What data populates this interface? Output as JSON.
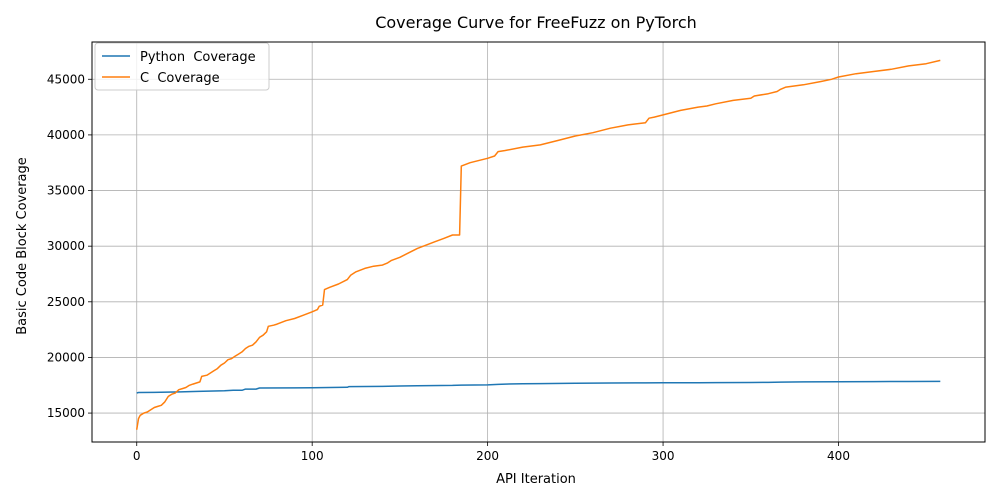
{
  "chart_data": {
    "type": "line",
    "title": "Coverage Curve for FreeFuzz on PyTorch",
    "xlabel": "API Iteration",
    "ylabel": "Basic Code Block Coverage",
    "xlim": [
      -25.5,
      483.5
    ],
    "ylim": [
      12400,
      48350
    ],
    "xticks": [
      0,
      100,
      200,
      300,
      400
    ],
    "yticks": [
      15000,
      20000,
      25000,
      30000,
      35000,
      40000,
      45000
    ],
    "grid": true,
    "legend_position": "top-left",
    "series": [
      {
        "name": "Python  Coverage",
        "color": "#1f77b4",
        "x": [
          0,
          1,
          10,
          25,
          35,
          50,
          55,
          60,
          62,
          68,
          70,
          90,
          100,
          110,
          120,
          121,
          140,
          150,
          160,
          180,
          185,
          200,
          206,
          210,
          220,
          230,
          250,
          270,
          290,
          300,
          320,
          330,
          350,
          360,
          367,
          380,
          400,
          420,
          440,
          458
        ],
        "y": [
          16800,
          16850,
          16860,
          16900,
          16950,
          17000,
          17050,
          17050,
          17150,
          17150,
          17250,
          17260,
          17280,
          17300,
          17320,
          17380,
          17400,
          17430,
          17460,
          17490,
          17510,
          17530,
          17580,
          17600,
          17630,
          17650,
          17680,
          17700,
          17710,
          17720,
          17730,
          17740,
          17750,
          17760,
          17780,
          17800,
          17810,
          17830,
          17840,
          17850
        ]
      },
      {
        "name": "C  Coverage",
        "color": "#ff7f0e",
        "x": [
          0,
          1,
          2,
          4,
          6,
          8,
          10,
          12,
          14,
          16,
          18,
          20,
          22,
          24,
          26,
          28,
          30,
          32,
          34,
          36,
          37,
          40,
          42,
          44,
          46,
          48,
          50,
          52,
          54,
          56,
          58,
          60,
          62,
          64,
          66,
          68,
          70,
          72,
          74,
          75,
          78,
          80,
          85,
          90,
          95,
          100,
          103,
          104,
          106,
          107,
          110,
          115,
          120,
          122,
          125,
          130,
          135,
          140,
          143,
          145,
          150,
          155,
          160,
          165,
          170,
          175,
          180,
          182,
          184,
          185,
          190,
          200,
          204,
          206,
          210,
          220,
          230,
          240,
          250,
          260,
          270,
          280,
          290,
          292,
          295,
          300,
          310,
          320,
          325,
          330,
          340,
          350,
          352,
          360,
          365,
          367,
          370,
          380,
          390,
          396,
          400,
          410,
          420,
          430,
          440,
          450,
          458
        ],
        "y": [
          13500,
          14500,
          14800,
          15000,
          15100,
          15300,
          15500,
          15600,
          15700,
          16000,
          16500,
          16700,
          16800,
          17100,
          17200,
          17300,
          17500,
          17600,
          17700,
          17800,
          18300,
          18400,
          18600,
          18800,
          19000,
          19300,
          19500,
          19800,
          19900,
          20100,
          20300,
          20500,
          20800,
          21000,
          21100,
          21400,
          21800,
          22000,
          22300,
          22800,
          22900,
          23000,
          23300,
          23500,
          23800,
          24100,
          24300,
          24600,
          24700,
          26100,
          26300,
          26600,
          27000,
          27400,
          27700,
          28000,
          28200,
          28300,
          28500,
          28700,
          29000,
          29400,
          29800,
          30100,
          30400,
          30700,
          31000,
          31000,
          31000,
          37200,
          37500,
          37900,
          38100,
          38500,
          38600,
          38900,
          39100,
          39500,
          39900,
          40200,
          40600,
          40900,
          41100,
          41500,
          41600,
          41800,
          42200,
          42500,
          42600,
          42800,
          43100,
          43300,
          43500,
          43700,
          43900,
          44100,
          44300,
          44500,
          44800,
          45000,
          45200,
          45500,
          45700,
          45900,
          46200,
          46400,
          46700
        ]
      }
    ]
  }
}
